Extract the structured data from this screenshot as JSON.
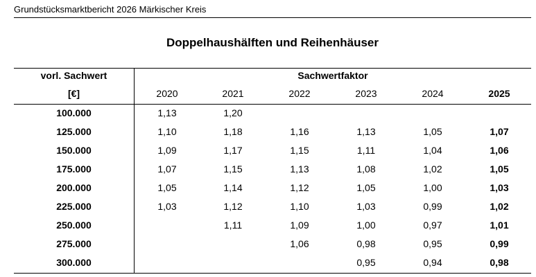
{
  "header": {
    "text": "Grundstücksmarktbericht 2026 Märkischer Kreis"
  },
  "table": {
    "title": "Doppelhaushälften und Reihenhäuser",
    "row_header_line1": "vorl. Sachwert",
    "row_header_line2": "[€]",
    "group_header": "Sachwertfaktor",
    "years": [
      "2020",
      "2021",
      "2022",
      "2023",
      "2024",
      "2025"
    ],
    "rows": [
      {
        "value": "100.000",
        "cells": [
          "1,13",
          "1,20",
          "",
          "",
          "",
          ""
        ]
      },
      {
        "value": "125.000",
        "cells": [
          "1,10",
          "1,18",
          "1,16",
          "1,13",
          "1,05",
          "1,07"
        ]
      },
      {
        "value": "150.000",
        "cells": [
          "1,09",
          "1,17",
          "1,15",
          "1,11",
          "1,04",
          "1,06"
        ]
      },
      {
        "value": "175.000",
        "cells": [
          "1,07",
          "1,15",
          "1,13",
          "1,08",
          "1,02",
          "1,05"
        ]
      },
      {
        "value": "200.000",
        "cells": [
          "1,05",
          "1,14",
          "1,12",
          "1,05",
          "1,00",
          "1,03"
        ]
      },
      {
        "value": "225.000",
        "cells": [
          "1,03",
          "1,12",
          "1,10",
          "1,03",
          "0,99",
          "1,02"
        ]
      },
      {
        "value": "250.000",
        "cells": [
          "",
          "1,11",
          "1,09",
          "1,00",
          "0,97",
          "1,01"
        ]
      },
      {
        "value": "275.000",
        "cells": [
          "",
          "",
          "1,06",
          "0,98",
          "0,95",
          "0,99"
        ]
      },
      {
        "value": "300.000",
        "cells": [
          "",
          "",
          "",
          "0,95",
          "0,94",
          "0,98"
        ]
      }
    ]
  }
}
